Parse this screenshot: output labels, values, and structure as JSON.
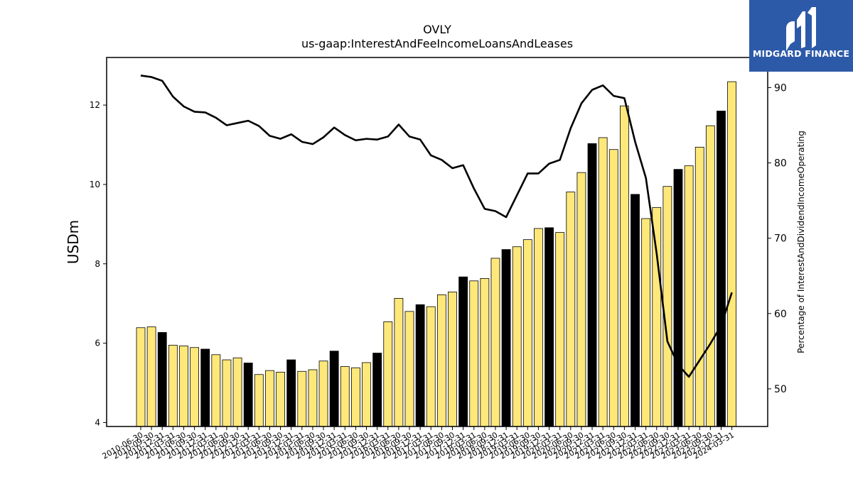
{
  "title": "OVLY",
  "subtitle": "us-gaap:InterestAndFeeIncomeLoansAndLeases",
  "logo": {
    "text": "MIDGARD FINANCE",
    "bg_color": "#2d5aa8"
  },
  "chart_data": {
    "type": "bar",
    "title": "OVLY",
    "subtitle": "us-gaap:InterestAndFeeIncomeLoansAndLeases",
    "ylabel": "USDm",
    "y2label": "Percentage of InterestAndDividendIncomeOperating",
    "ylim": [
      3.9,
      13.2
    ],
    "y2lim": [
      45,
      94
    ],
    "yticks": [
      4,
      6,
      8,
      10,
      12
    ],
    "y2ticks": [
      50,
      60,
      70,
      80,
      90
    ],
    "colors": {
      "bar_default": "#ffe87a",
      "bar_q4": "#000000",
      "bar_edge": "#000000",
      "line": "#000000"
    },
    "categories": [
      "2010-06-30",
      "2010-09-30",
      "2010-12-31",
      "2011-03-31",
      "2011-06-30",
      "2011-09-30",
      "2011-12-31",
      "2012-03-31",
      "2012-06-30",
      "2012-09-30",
      "2012-12-31",
      "2013-03-31",
      "2013-06-30",
      "2013-09-30",
      "2013-12-31",
      "2014-03-31",
      "2014-06-30",
      "2014-09-30",
      "2014-12-31",
      "2015-03-31",
      "2015-06-30",
      "2015-09-30",
      "2015-12-31",
      "2016-03-31",
      "2016-06-30",
      "2016-09-30",
      "2016-12-31",
      "2017-03-31",
      "2017-06-30",
      "2017-09-30",
      "2017-12-31",
      "2018-03-31",
      "2018-06-30",
      "2018-09-30",
      "2018-12-31",
      "2019-03-31",
      "2019-06-30",
      "2019-09-30",
      "2019-12-31",
      "2020-03-31",
      "2020-06-30",
      "2020-09-30",
      "2020-12-31",
      "2021-03-31",
      "2021-06-30",
      "2021-09-30",
      "2021-12-31",
      "2022-03-31",
      "2022-06-30",
      "2022-09-30",
      "2022-12-31",
      "2023-03-31",
      "2023-06-30",
      "2023-09-30",
      "2023-12-31",
      "2024-03-31"
    ],
    "series": [
      {
        "type": "bar",
        "values": [
          6.39,
          6.41,
          6.27,
          5.95,
          5.93,
          5.89,
          5.85,
          5.71,
          5.58,
          5.63,
          5.5,
          5.21,
          5.31,
          5.27,
          5.58,
          5.29,
          5.33,
          5.55,
          5.8,
          5.41,
          5.38,
          5.51,
          5.75,
          6.54,
          7.13,
          6.8,
          6.97,
          6.92,
          7.22,
          7.29,
          7.67,
          7.57,
          7.63,
          8.14,
          8.36,
          8.43,
          8.61,
          8.89,
          8.91,
          8.79,
          9.81,
          10.3,
          11.03,
          11.18,
          10.88,
          11.98,
          9.75,
          9.14,
          9.42,
          9.95,
          10.38,
          10.47,
          10.94,
          11.48,
          11.85,
          12.59
        ]
      },
      {
        "type": "line",
        "axis": "right",
        "values": [
          91.6,
          91.4,
          90.9,
          88.8,
          87.5,
          86.8,
          86.7,
          86.0,
          85.0,
          85.3,
          85.6,
          84.9,
          83.6,
          83.2,
          83.8,
          82.8,
          82.5,
          83.4,
          84.7,
          83.7,
          83.0,
          83.2,
          83.1,
          83.5,
          85.1,
          83.5,
          83.1,
          81.0,
          80.4,
          79.3,
          79.7,
          76.6,
          73.9,
          73.6,
          72.8,
          75.7,
          78.6,
          78.6,
          79.9,
          80.4,
          84.6,
          87.9,
          89.7,
          90.3,
          88.9,
          88.6,
          82.8,
          78.0,
          68.0,
          56.3,
          53.2,
          51.6,
          53.8,
          56.0,
          58.4,
          62.8
        ]
      }
    ]
  }
}
